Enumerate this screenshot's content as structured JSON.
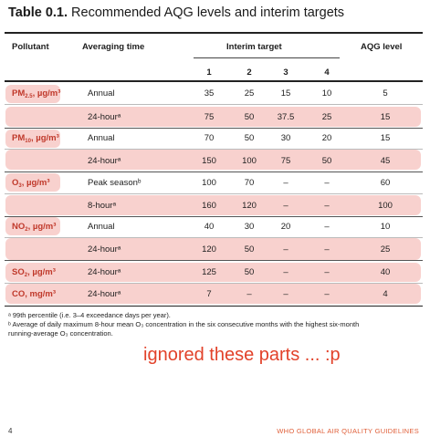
{
  "title": {
    "bold": "Table 0.1.",
    "rest": " Recommended AQG levels and interim targets"
  },
  "headers": {
    "pollutant": "Pollutant",
    "averaging": "Averaging time",
    "interim": "Interim target",
    "aqg": "AQG level",
    "nums": [
      "1",
      "2",
      "3",
      "4"
    ]
  },
  "rows": [
    {
      "pollutant": "PM",
      "sub": "2.5",
      "unit": ", µg/m³",
      "avg": "Annual",
      "v": [
        "35",
        "25",
        "15",
        "10",
        "5"
      ]
    },
    {
      "pollutant": "",
      "sub": "",
      "unit": "",
      "avg": "24-hourᵃ",
      "v": [
        "75",
        "50",
        "37.5",
        "25",
        "15"
      ]
    },
    {
      "pollutant": "PM",
      "sub": "10",
      "unit": ", µg/m³",
      "avg": "Annual",
      "v": [
        "70",
        "50",
        "30",
        "20",
        "15"
      ]
    },
    {
      "pollutant": "",
      "sub": "",
      "unit": "",
      "avg": "24-hourᵃ",
      "v": [
        "150",
        "100",
        "75",
        "50",
        "45"
      ]
    },
    {
      "pollutant": "O",
      "sub": "3",
      "unit": ", µg/m³",
      "avg": "Peak seasonᵇ",
      "v": [
        "100",
        "70",
        "–",
        "–",
        "60"
      ]
    },
    {
      "pollutant": "",
      "sub": "",
      "unit": "",
      "avg": "8-hourᵃ",
      "v": [
        "160",
        "120",
        "–",
        "–",
        "100"
      ]
    },
    {
      "pollutant": "NO",
      "sub": "2",
      "unit": ", µg/m³",
      "avg": "Annual",
      "v": [
        "40",
        "30",
        "20",
        "–",
        "10"
      ]
    },
    {
      "pollutant": "",
      "sub": "",
      "unit": "",
      "avg": "24-hourᵃ",
      "v": [
        "120",
        "50",
        "–",
        "–",
        "25"
      ]
    },
    {
      "pollutant": "SO",
      "sub": "2",
      "unit": ", µg/m³",
      "avg": "24-hourᵃ",
      "v": [
        "125",
        "50",
        "–",
        "–",
        "40"
      ]
    },
    {
      "pollutant": "CO",
      "sub": "",
      "unit": ", mg/m³",
      "avg": "24-hourᵃ",
      "v": [
        "7",
        "–",
        "–",
        "–",
        "4"
      ]
    }
  ],
  "footnotes": [
    "ᵃ 99th percentile (i.e. 3–4 exceedance days per year).",
    "ᵇ Average of daily maximum 8-hour mean O₃ concentration in the six consecutive months with the highest six-month",
    "running-average O₃ concentration."
  ],
  "scribble": "ignored these parts ... :p",
  "page_number": "4",
  "guide_name": "WHO GLOBAL AIR QUALITY GUIDELINES"
}
